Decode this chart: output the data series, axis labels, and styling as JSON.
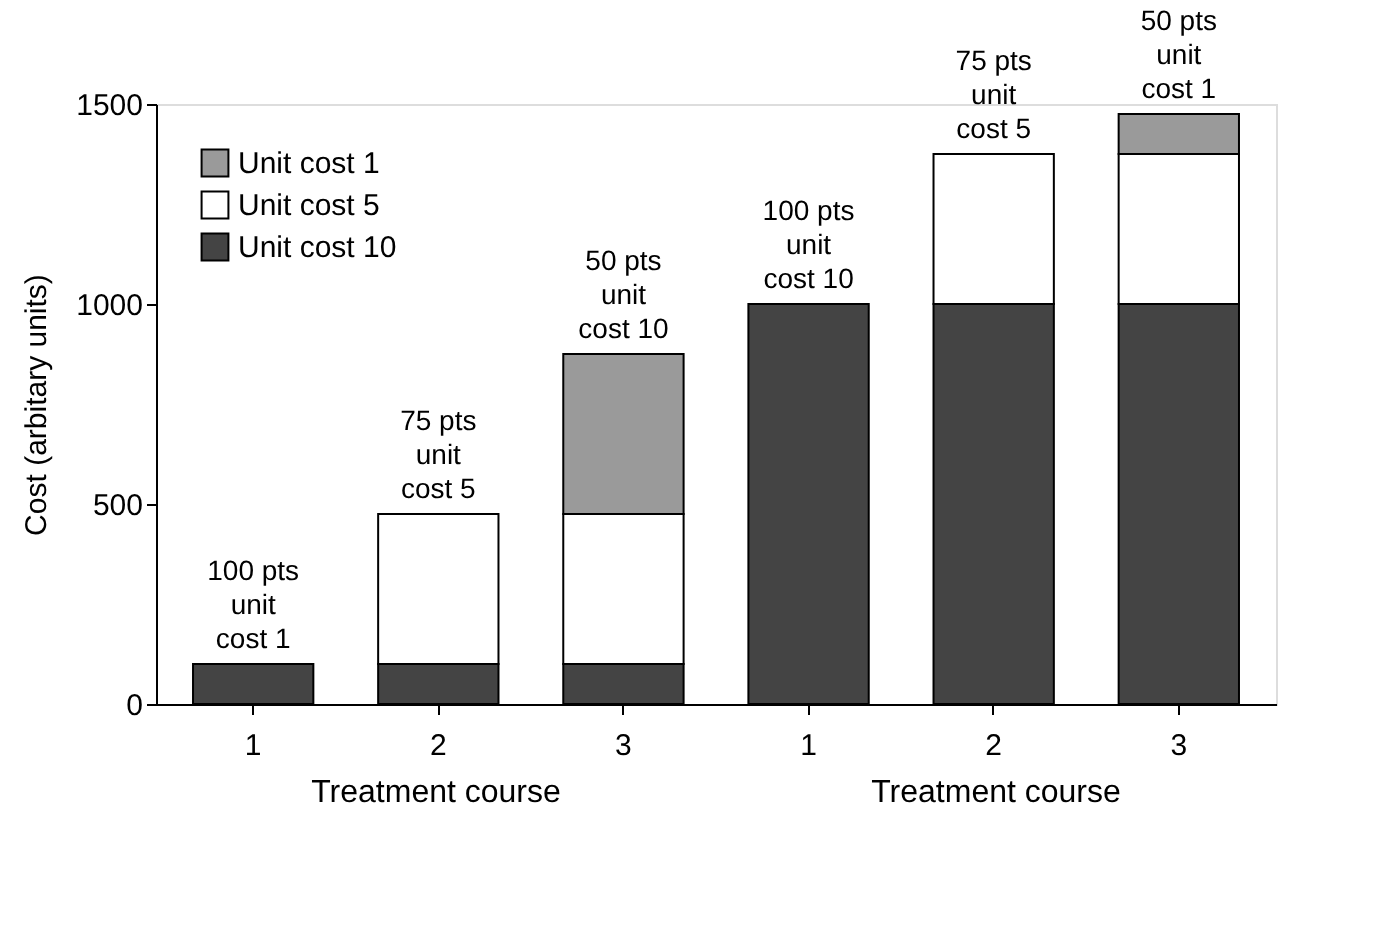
{
  "chart_data": {
    "type": "bar",
    "stacked": true,
    "categories": [
      "1",
      "2",
      "3",
      "1",
      "2",
      "3"
    ],
    "series": [
      {
        "name": "Unit cost 10",
        "color": "#444444",
        "values": [
          100,
          100,
          100,
          1000,
          1000,
          1000
        ]
      },
      {
        "name": "Unit cost 5",
        "color": "#ffffff",
        "values": [
          null,
          375,
          375,
          null,
          375,
          375
        ]
      },
      {
        "name": "Unit cost 1",
        "color": "#9a9a9a",
        "values": [
          null,
          null,
          400,
          null,
          null,
          100
        ]
      }
    ],
    "xlabel": "Treatment course",
    "ylabel": "Cost (arbitary units)",
    "ylim": [
      0,
      1500
    ],
    "yticks": [
      0,
      500,
      1000,
      1500
    ],
    "grid": false,
    "legend": "top left",
    "annotations": [
      "100 pts\nunit\ncost 1",
      "75 pts\nunit\ncost 5",
      "50 pts\nunit\ncost 10",
      "100 pts\nunit\ncost 10",
      "75 pts\nunit\ncost 5",
      "50 pts\nunit\ncost 1"
    ]
  }
}
